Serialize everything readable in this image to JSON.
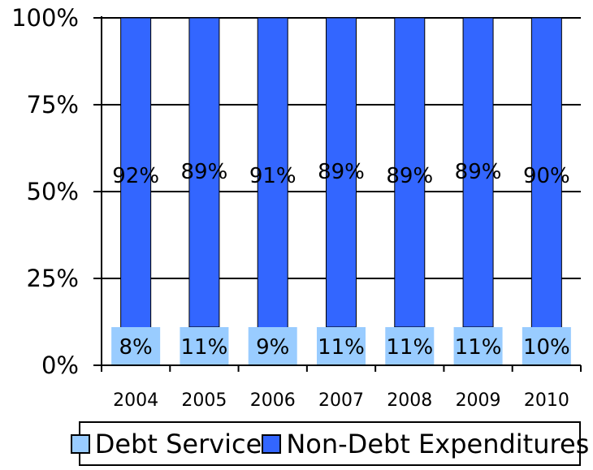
{
  "chart_data": {
    "type": "bar",
    "stacked": true,
    "categories": [
      "2004",
      "2005",
      "2006",
      "2007",
      "2008",
      "2009",
      "2010"
    ],
    "series": [
      {
        "name": "Debt Service",
        "values": [
          8,
          11,
          9,
          11,
          11,
          11,
          10
        ],
        "color": "#99ccff"
      },
      {
        "name": "Non-Debt Expenditures",
        "values": [
          92,
          89,
          91,
          89,
          89,
          89,
          90
        ],
        "color": "#3366ff"
      }
    ],
    "value_format": "{v}%",
    "yticks": [
      "0%",
      "25%",
      "50%",
      "75%",
      "100%"
    ],
    "ylim": [
      0,
      100
    ],
    "grid": true,
    "legend_position": "bottom"
  }
}
